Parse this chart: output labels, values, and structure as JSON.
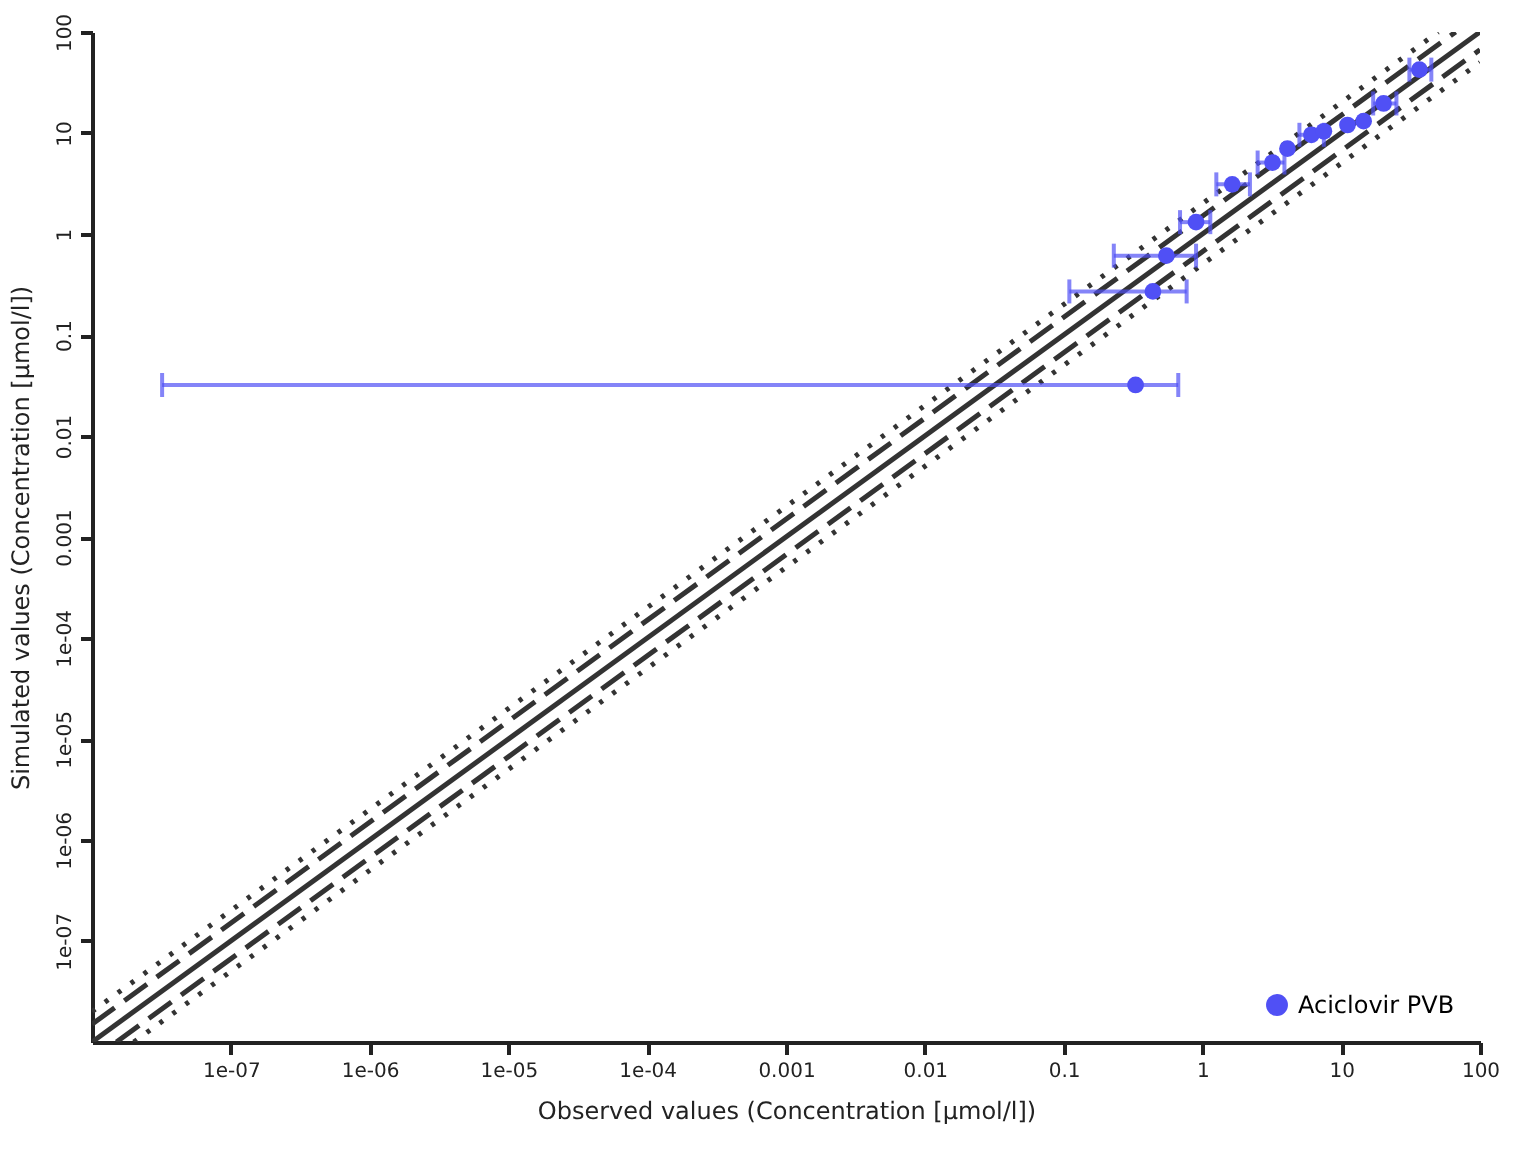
{
  "chart_data": {
    "type": "scatter",
    "xlabel": "Observed values (Concentration [µmol/l])",
    "ylabel": "Simulated values (Concentration [µmol/l])",
    "log": "xy",
    "grid": false,
    "legend": "bottom right",
    "xlim": [
      1e-08,
      100
    ],
    "ylim": [
      1e-08,
      100
    ],
    "xticks": [
      {
        "value": 1e-07,
        "label": "1e-07"
      },
      {
        "value": 1e-06,
        "label": "1e-06"
      },
      {
        "value": 1e-05,
        "label": "1e-05"
      },
      {
        "value": 0.0001,
        "label": "1e-04"
      },
      0.001,
      0.01,
      0.1,
      1,
      10,
      100
    ],
    "yticks": [
      {
        "value": 1e-07,
        "label": "1e-07"
      },
      {
        "value": 1e-06,
        "label": "1e-06"
      },
      {
        "value": 1e-05,
        "label": "1e-05"
      },
      {
        "value": 0.0001,
        "label": "1e-04"
      },
      0.001,
      0.01,
      0.1,
      1,
      10,
      100
    ],
    "series": [
      {
        "type": "line",
        "color": "#333333",
        "line_style": "solid",
        "x": [
          1e-08,
          100
        ],
        "values": [
          1e-08,
          100
        ]
      },
      {
        "type": "line",
        "color": "#333333",
        "line_style": "dashed",
        "x": [
          1e-08,
          66.7
        ],
        "values": [
          1.5e-08,
          100
        ]
      },
      {
        "type": "line",
        "color": "#333333",
        "line_style": "dashed",
        "x": [
          1.5e-08,
          100
        ],
        "values": [
          1e-08,
          66.7
        ]
      },
      {
        "type": "line",
        "color": "#333333",
        "line_style": "dotted",
        "x": [
          1e-08,
          50
        ],
        "values": [
          2e-08,
          100
        ]
      },
      {
        "type": "line",
        "color": "#333333",
        "line_style": "dotted",
        "x": [
          2e-08,
          100
        ],
        "values": [
          1e-08,
          50
        ]
      },
      {
        "name": "Aciclovir PVB",
        "color": "#5050f5",
        "marker": "circle",
        "x": [
          0.33,
          0.44,
          0.55,
          0.9,
          1.64,
          3.2,
          4.1,
          6.1,
          7.5,
          11.1,
          14.5,
          20.2,
          36.6
        ],
        "values": [
          0.032,
          0.27,
          0.61,
          1.31,
          3.1,
          5.1,
          7.0,
          9.6,
          10.4,
          12.0,
          13.1,
          19.6,
          42.4
        ],
        "xerrors": [
          [
            3.2e-08,
            0.67
          ],
          [
            0.11,
            0.77
          ],
          [
            0.23,
            0.9
          ],
          [
            0.69,
            1.14
          ],
          [
            1.26,
            2.2
          ],
          [
            2.5,
            3.9
          ],
          null,
          [
            5.0,
            7.5
          ],
          null,
          null,
          null,
          [
            17,
            25
          ],
          [
            31,
            44.6
          ]
        ]
      }
    ]
  }
}
